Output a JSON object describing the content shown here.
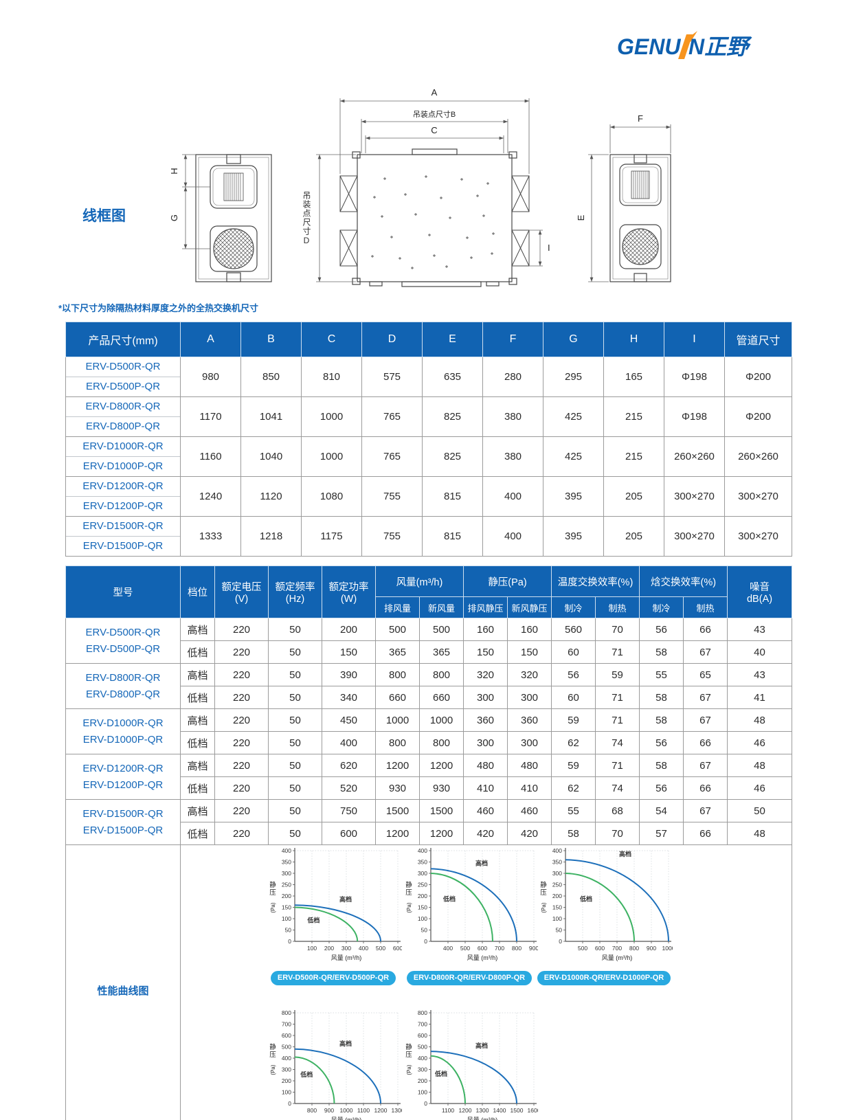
{
  "logo": {
    "text_left": "GENU",
    "text_right": "N正野"
  },
  "colors": {
    "header_bg": "#1163b2",
    "model_text": "#1567b8",
    "pill_bg": "#29a9e0",
    "curve_high": "#1c6fba",
    "curve_low": "#3db263",
    "logo_blue": "#0e5fae",
    "logo_orange": "#f7941e"
  },
  "wireframe": {
    "section_label": "线框图",
    "dim_a": "A",
    "dim_b": "吊装点尺寸B",
    "dim_c": "C",
    "dim_d": "吊装点尺寸D",
    "dim_e": "E",
    "dim_f": "F",
    "dim_g": "G",
    "dim_h": "H",
    "dim_i": "I"
  },
  "note": "*以下尺寸为除隔热材料厚度之外的全热交换机尺寸",
  "dim_table": {
    "header": [
      "产品尺寸(mm)",
      "A",
      "B",
      "C",
      "D",
      "E",
      "F",
      "G",
      "H",
      "I",
      "管道尺寸"
    ],
    "rows": [
      {
        "models": [
          "ERV-D500R-QR",
          "ERV-D500P-QR"
        ],
        "values": [
          "980",
          "850",
          "810",
          "575",
          "635",
          "280",
          "295",
          "165",
          "Φ198",
          "Φ200"
        ]
      },
      {
        "models": [
          "ERV-D800R-QR",
          "ERV-D800P-QR"
        ],
        "values": [
          "1170",
          "1041",
          "1000",
          "765",
          "825",
          "380",
          "425",
          "215",
          "Φ198",
          "Φ200"
        ]
      },
      {
        "models": [
          "ERV-D1000R-QR",
          "ERV-D1000P-QR"
        ],
        "values": [
          "1160",
          "1040",
          "1000",
          "765",
          "825",
          "380",
          "425",
          "215",
          "260×260",
          "260×260"
        ]
      },
      {
        "models": [
          "ERV-D1200R-QR",
          "ERV-D1200P-QR"
        ],
        "values": [
          "1240",
          "1120",
          "1080",
          "755",
          "815",
          "400",
          "395",
          "205",
          "300×270",
          "300×270"
        ]
      },
      {
        "models": [
          "ERV-D1500R-QR",
          "ERV-D1500P-QR"
        ],
        "values": [
          "1333",
          "1218",
          "1175",
          "755",
          "815",
          "400",
          "395",
          "205",
          "300×270",
          "300×270"
        ]
      }
    ]
  },
  "spec_table": {
    "top": [
      "型号",
      "档位",
      "额定电压\n(V)",
      "额定频率\n(Hz)",
      "额定功率\n(W)",
      "风量(m³/h)",
      "静压(Pa)",
      "温度交换效率(%)",
      "焓交换效率(%)",
      "噪音\ndB(A)"
    ],
    "sub": [
      "排风量",
      "新风量",
      "排风静压",
      "新风静压",
      "制冷",
      "制热",
      "制冷",
      "制热"
    ],
    "groups": [
      {
        "models": [
          "ERV-D500R-QR",
          "ERV-D500P-QR"
        ],
        "rows": [
          {
            "gear": "高档",
            "values": [
              "220",
              "50",
              "200",
              "500",
              "500",
              "160",
              "160",
              "560",
              "70",
              "56",
              "66",
              "43"
            ]
          },
          {
            "gear": "低档",
            "values": [
              "220",
              "50",
              "150",
              "365",
              "365",
              "150",
              "150",
              "60",
              "71",
              "58",
              "67",
              "40"
            ]
          }
        ]
      },
      {
        "models": [
          "ERV-D800R-QR",
          "ERV-D800P-QR"
        ],
        "rows": [
          {
            "gear": "高档",
            "values": [
              "220",
              "50",
              "390",
              "800",
              "800",
              "320",
              "320",
              "56",
              "59",
              "55",
              "65",
              "43"
            ]
          },
          {
            "gear": "低档",
            "values": [
              "220",
              "50",
              "340",
              "660",
              "660",
              "300",
              "300",
              "60",
              "71",
              "58",
              "67",
              "41"
            ]
          }
        ]
      },
      {
        "models": [
          "ERV-D1000R-QR",
          "ERV-D1000P-QR"
        ],
        "rows": [
          {
            "gear": "高档",
            "values": [
              "220",
              "50",
              "450",
              "1000",
              "1000",
              "360",
              "360",
              "59",
              "71",
              "58",
              "67",
              "48"
            ]
          },
          {
            "gear": "低档",
            "values": [
              "220",
              "50",
              "400",
              "800",
              "800",
              "300",
              "300",
              "62",
              "74",
              "56",
              "66",
              "46"
            ]
          }
        ]
      },
      {
        "models": [
          "ERV-D1200R-QR",
          "ERV-D1200P-QR"
        ],
        "rows": [
          {
            "gear": "高档",
            "values": [
              "220",
              "50",
              "620",
              "1200",
              "1200",
              "480",
              "480",
              "59",
              "71",
              "58",
              "67",
              "48"
            ]
          },
          {
            "gear": "低档",
            "values": [
              "220",
              "50",
              "520",
              "930",
              "930",
              "410",
              "410",
              "62",
              "74",
              "56",
              "66",
              "46"
            ]
          }
        ]
      },
      {
        "models": [
          "ERV-D1500R-QR",
          "ERV-D1500P-QR"
        ],
        "rows": [
          {
            "gear": "高档",
            "values": [
              "220",
              "50",
              "750",
              "1500",
              "1500",
              "460",
              "460",
              "55",
              "68",
              "54",
              "67",
              "50"
            ]
          },
          {
            "gear": "低档",
            "values": [
              "220",
              "50",
              "600",
              "1200",
              "1200",
              "420",
              "420",
              "58",
              "70",
              "57",
              "66",
              "48"
            ]
          }
        ]
      }
    ]
  },
  "performance": {
    "section_label": "性能曲线图"
  },
  "chart_data": [
    {
      "type": "line",
      "title": "ERV-D500R-QR/ERV-D500P-QR",
      "xlabel": "风量 (m³/h)",
      "ylabel": "静压",
      "ylabel_unit": "(Pa)",
      "xlim": [
        0,
        600
      ],
      "xticks": [
        100,
        200,
        300,
        400,
        500,
        600
      ],
      "ylim": [
        0,
        400
      ],
      "ystep": 50,
      "grid": true,
      "legend_position": "on-curve",
      "series": [
        {
          "name": "高档",
          "color": "#1c6fba",
          "start_pa": 160,
          "max_flow": 500
        },
        {
          "name": "低档",
          "color": "#3db263",
          "start_pa": 150,
          "max_flow": 365
        }
      ]
    },
    {
      "type": "line",
      "title": "ERV-D800R-QR/ERV-D800P-QR",
      "xlabel": "风量 (m³/h)",
      "ylabel": "静压",
      "ylabel_unit": "(Pa)",
      "xlim": [
        300,
        900
      ],
      "xticks": [
        400,
        500,
        600,
        700,
        800,
        900
      ],
      "ylim": [
        0,
        400
      ],
      "ystep": 50,
      "grid": true,
      "legend_position": "on-curve",
      "series": [
        {
          "name": "高档",
          "color": "#1c6fba",
          "start_pa": 320,
          "max_flow": 800
        },
        {
          "name": "低档",
          "color": "#3db263",
          "start_pa": 300,
          "max_flow": 660
        }
      ]
    },
    {
      "type": "line",
      "title": "ERV-D1000R-QR/ERV-D1000P-QR",
      "xlabel": "风量 (m³/h)",
      "ylabel": "静压",
      "ylabel_unit": "(Pa)",
      "xlim": [
        400,
        1000
      ],
      "xticks": [
        500,
        600,
        700,
        800,
        900,
        1000
      ],
      "ylim": [
        0,
        400
      ],
      "ystep": 50,
      "grid": true,
      "legend_position": "on-curve",
      "series": [
        {
          "name": "高档",
          "color": "#1c6fba",
          "start_pa": 360,
          "max_flow": 1000
        },
        {
          "name": "低档",
          "color": "#3db263",
          "start_pa": 300,
          "max_flow": 800
        }
      ]
    },
    {
      "type": "line",
      "title": "ERV-D1200R-QR/ERV-D1200P-QR",
      "xlabel": "风量 (m³/h)",
      "ylabel": "静压",
      "ylabel_unit": "(Pa)",
      "xlim": [
        700,
        1300
      ],
      "xticks": [
        800,
        900,
        1000,
        1100,
        1200,
        1300
      ],
      "ylim": [
        0,
        800
      ],
      "ystep": 100,
      "grid": true,
      "legend_position": "on-curve",
      "series": [
        {
          "name": "高档",
          "color": "#1c6fba",
          "start_pa": 480,
          "max_flow": 1200
        },
        {
          "name": "低档",
          "color": "#3db263",
          "start_pa": 410,
          "max_flow": 930
        }
      ]
    },
    {
      "type": "line",
      "title": "ERV-D1500R-QR/ERV-D1500P-QR",
      "xlabel": "风量 (m³/h)",
      "ylabel": "静压",
      "ylabel_unit": "(Pa)",
      "xlim": [
        1000,
        1600
      ],
      "xticks": [
        1100,
        1200,
        1300,
        1400,
        1500,
        1600
      ],
      "ylim": [
        0,
        800
      ],
      "ystep": 100,
      "grid": true,
      "legend_position": "on-curve",
      "series": [
        {
          "name": "高档",
          "color": "#1c6fba",
          "start_pa": 460,
          "max_flow": 1500
        },
        {
          "name": "低档",
          "color": "#3db263",
          "start_pa": 420,
          "max_flow": 1200
        }
      ]
    }
  ]
}
